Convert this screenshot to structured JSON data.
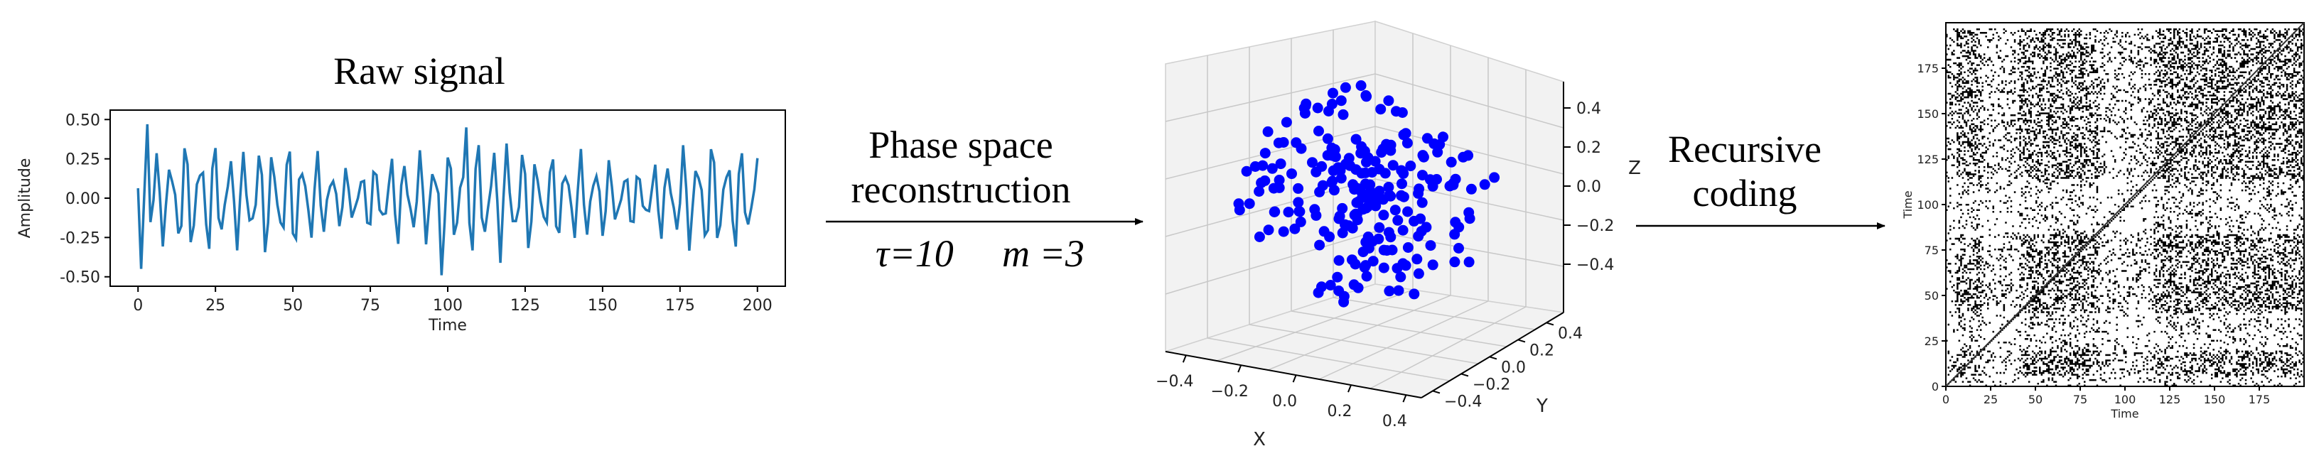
{
  "raw_signal": {
    "title": "Raw signal",
    "xlabel": "Time",
    "ylabel": "Amplitude",
    "x_ticks": [
      "0",
      "25",
      "50",
      "75",
      "100",
      "125",
      "150",
      "175",
      "200"
    ],
    "y_ticks": [
      "0.50",
      "0.25",
      "0.00",
      "-0.25",
      "-0.50"
    ],
    "line_color": "#1f77b4"
  },
  "arrow_phase": {
    "line1": "Phase space",
    "line2": "reconstruction",
    "tau_label": "τ=10",
    "m_label": "m =3"
  },
  "phase_space": {
    "xlabel": "X",
    "ylabel": "Y",
    "zlabel": "Z",
    "x_ticks": [
      "−0.4",
      "−0.2",
      "0.0",
      "0.2",
      "0.4"
    ],
    "y_ticks": [
      "0.4",
      "0.2",
      "0.0",
      "−0.2",
      "−0.4"
    ],
    "z_ticks": [
      "0.4",
      "0.2",
      "0.0",
      "−0.2",
      "−0.4"
    ],
    "point_color": "#0000ff"
  },
  "arrow_coding": {
    "line1": "Recursive",
    "line2": "coding"
  },
  "recurrence_plot": {
    "xlabel": "Time",
    "ylabel": "Time",
    "x_ticks": [
      "0",
      "25",
      "50",
      "75",
      "100",
      "125",
      "150",
      "175"
    ],
    "y_ticks": [
      "175",
      "150",
      "125",
      "100",
      "75",
      "50",
      "25",
      "0"
    ]
  }
}
